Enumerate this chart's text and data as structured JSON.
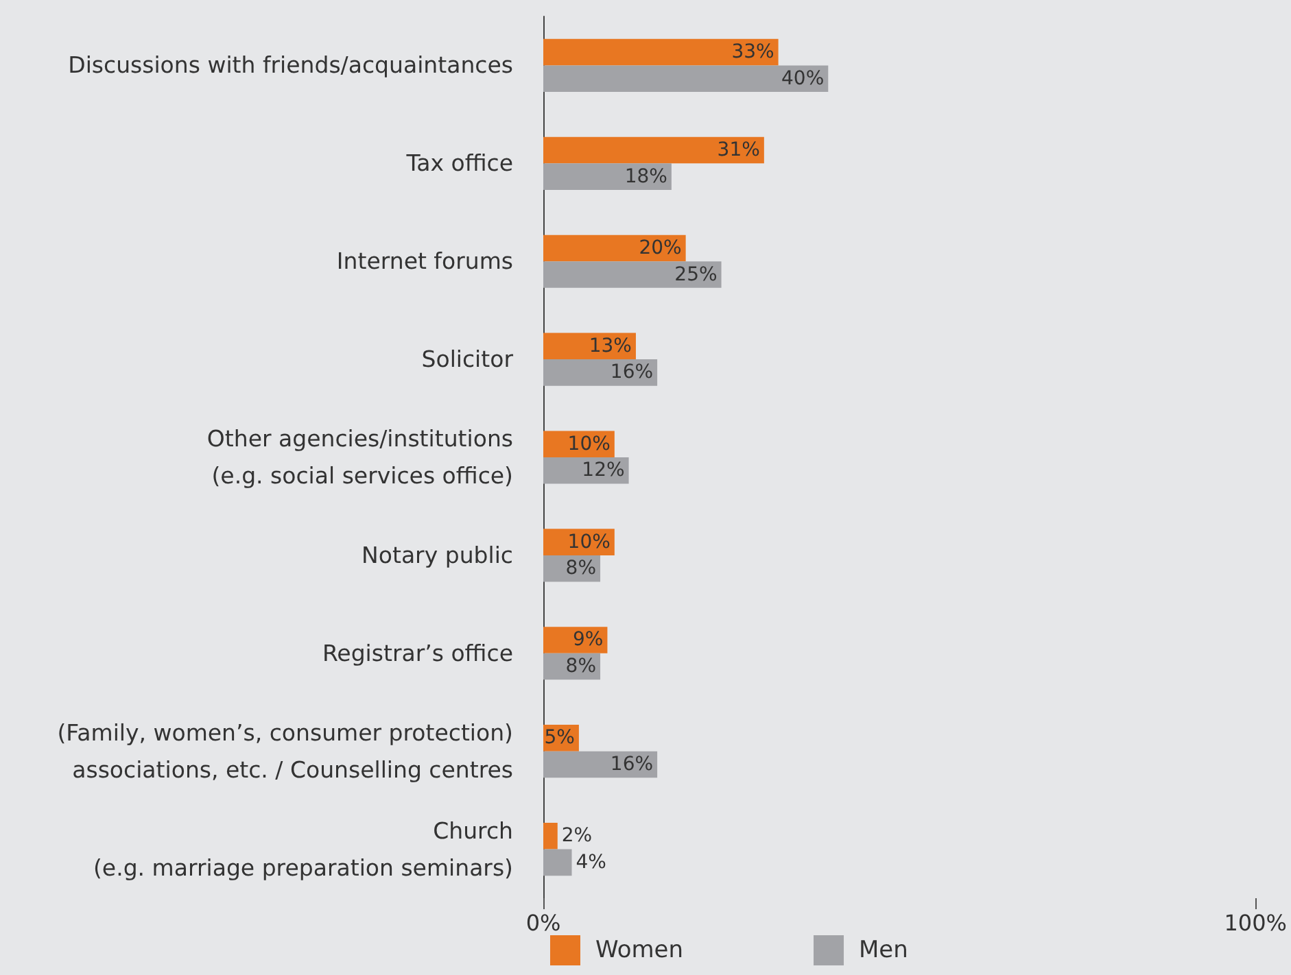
{
  "chart_data": {
    "type": "bar",
    "orientation": "horizontal",
    "categories": [
      "Discussions with friends/acquaintances",
      "Tax office",
      "Internet forums",
      "Solicitor",
      "Other agencies/institutions\n(e.g. social services office)",
      "Notary public",
      "Registrar’s office",
      "(Family, women’s, consumer protection)\nassociations, etc. / Counselling centres",
      "Church\n(e.g. marriage preparation seminars)"
    ],
    "series": [
      {
        "name": "Women",
        "color": "#e87722",
        "values": [
          33,
          31,
          20,
          13,
          10,
          10,
          9,
          5,
          2
        ],
        "value_labels": [
          "33%",
          "31%",
          "20%",
          "13%",
          "10%",
          "10%",
          "9%",
          "5%",
          "2%"
        ]
      },
      {
        "name": "Men",
        "color": "#a2a3a7",
        "values": [
          40,
          18,
          25,
          16,
          12,
          8,
          8,
          16,
          4
        ],
        "value_labels": [
          "40%",
          "18%",
          "25%",
          "16%",
          "12%",
          "8%",
          "8%",
          "16%",
          "4%"
        ]
      }
    ],
    "xlim": [
      0,
      100
    ],
    "xticks": [
      {
        "value": 0,
        "label": "0%"
      },
      {
        "value": 100,
        "label": "100%"
      }
    ],
    "grid": false,
    "legend": "bottom left"
  }
}
